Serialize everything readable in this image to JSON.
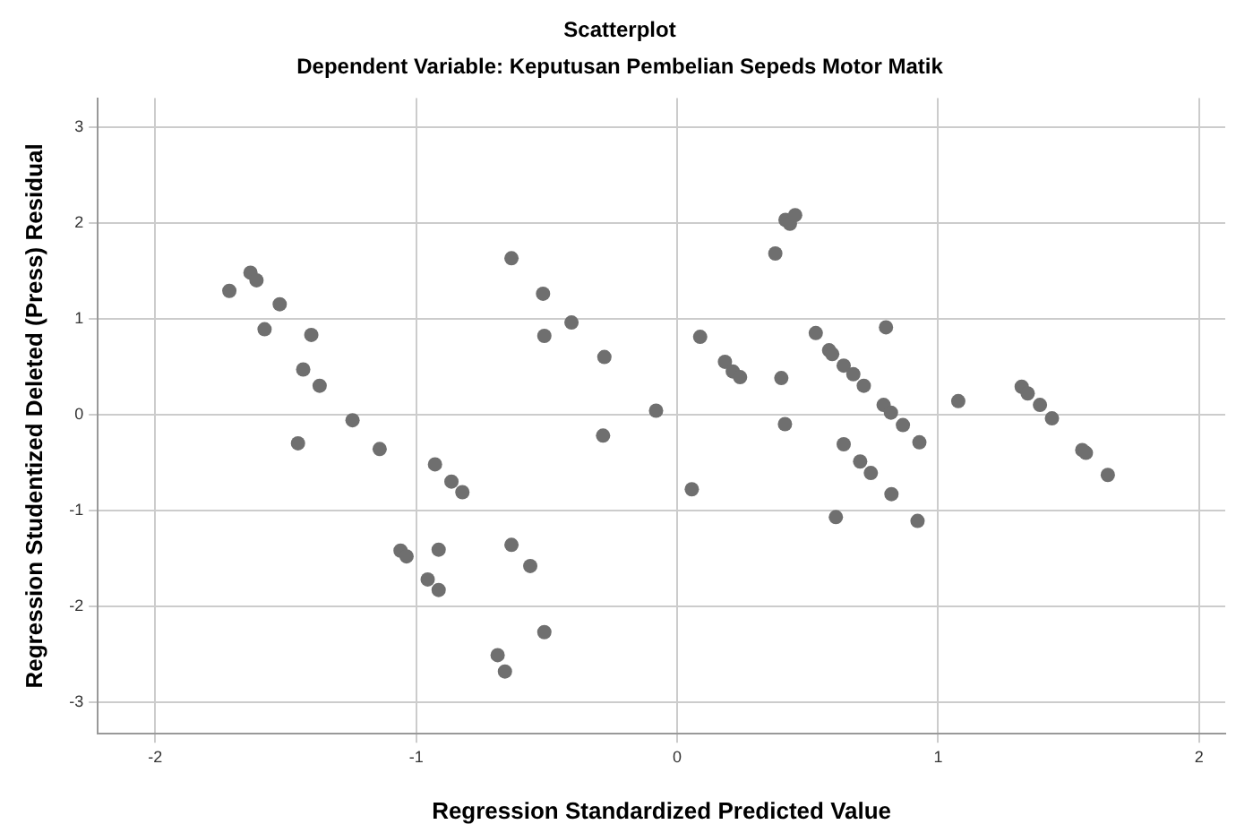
{
  "chart_data": {
    "type": "scatter",
    "title": "Scatterplot",
    "subtitle": "Dependent Variable: Keputusan Pembelian Sepeds Motor Matik",
    "xlabel": "Regression Standardized Predicted Value",
    "ylabel": "Regression Studentized Deleted (Press) Residual",
    "xlim": [
      -2.22,
      2.1
    ],
    "ylim": [
      -3.33,
      3.3
    ],
    "xticks": [
      -2,
      -1,
      0,
      1,
      2
    ],
    "yticks": [
      -3,
      -2,
      -1,
      0,
      1,
      2,
      3
    ],
    "grid": true,
    "marker": "circle",
    "series": [
      {
        "color": "#6f6f6f",
        "x": [
          -1.716,
          -1.635,
          -1.612,
          -1.523,
          -1.581,
          -1.402,
          -1.433,
          -1.37,
          -1.453,
          -1.244,
          -1.14,
          -0.928,
          -0.865,
          -0.823,
          -1.06,
          -1.037,
          -0.914,
          -0.956,
          -0.914,
          -0.635,
          -0.514,
          -0.509,
          -0.405,
          -0.279,
          -0.284,
          -0.081,
          -0.635,
          -0.563,
          -0.509,
          -0.688,
          -0.66,
          0.088,
          0.056,
          0.183,
          0.213,
          0.241,
          0.376,
          0.415,
          0.432,
          0.452,
          0.399,
          0.413,
          0.531,
          0.582,
          0.594,
          0.638,
          0.675,
          0.715,
          0.8,
          0.791,
          0.819,
          0.865,
          0.928,
          0.638,
          0.701,
          0.742,
          0.821,
          0.608,
          0.921,
          1.077,
          1.32,
          1.343,
          1.39,
          1.436,
          1.552,
          1.566,
          1.65
        ],
        "values": [
          1.29,
          1.48,
          1.4,
          1.15,
          0.89,
          0.83,
          0.47,
          0.3,
          -0.3,
          -0.06,
          -0.36,
          -0.52,
          -0.7,
          -0.81,
          -1.42,
          -1.48,
          -1.41,
          -1.72,
          -1.83,
          1.63,
          1.26,
          0.82,
          0.96,
          0.6,
          -0.22,
          0.04,
          -1.36,
          -1.58,
          -2.27,
          -2.51,
          -2.68,
          0.81,
          -0.78,
          0.55,
          0.45,
          0.39,
          1.68,
          2.03,
          1.99,
          2.08,
          0.38,
          -0.1,
          0.85,
          0.67,
          0.63,
          0.51,
          0.42,
          0.3,
          0.91,
          0.1,
          0.02,
          -0.11,
          -0.29,
          -0.31,
          -0.49,
          -0.61,
          -0.83,
          -1.07,
          -1.11,
          0.14,
          0.29,
          0.22,
          0.1,
          -0.04,
          -0.37,
          -0.4,
          -0.63
        ]
      }
    ]
  }
}
